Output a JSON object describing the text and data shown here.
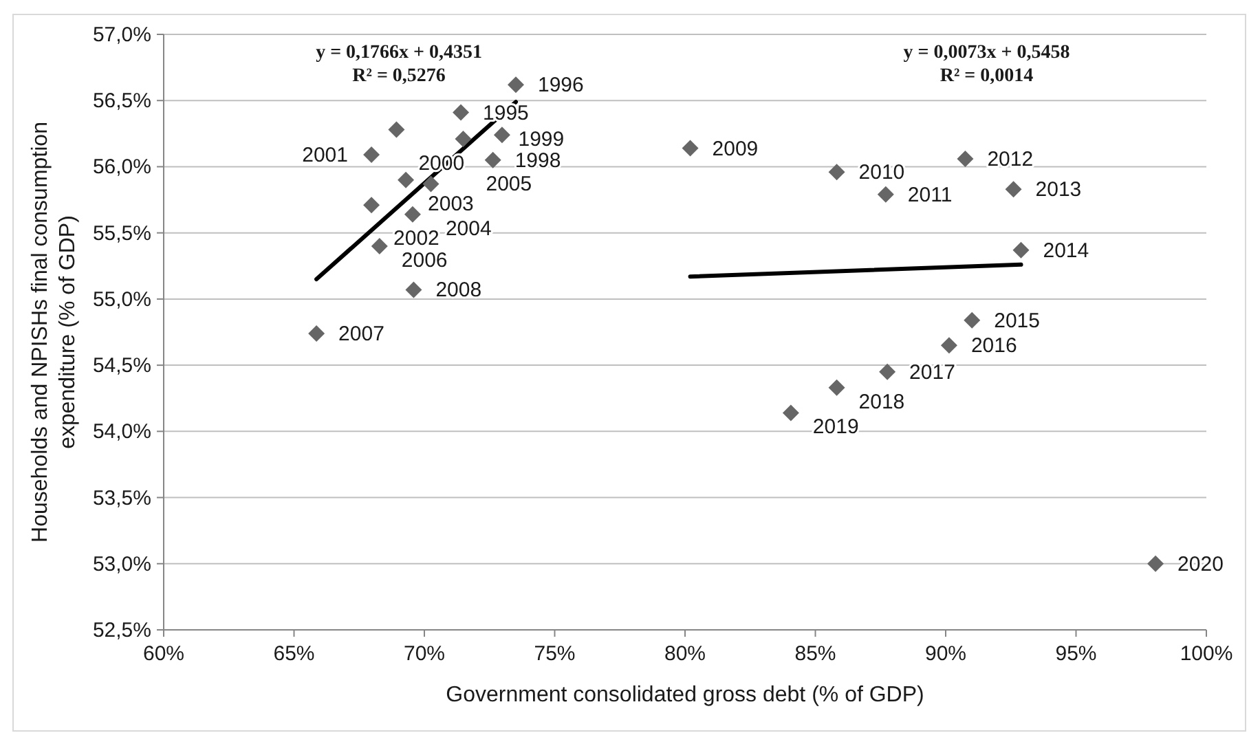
{
  "chart_data": {
    "type": "scatter",
    "xlabel": "Government consolidated gross debt (% of GDP)",
    "ylabel": "Households and NPISHs final consumption\nexpenditure (% of GDP)",
    "xlim": [
      60,
      100
    ],
    "ylim": [
      52.5,
      57
    ],
    "xticks": [
      {
        "value": 60,
        "label": "60%"
      },
      {
        "value": 65,
        "label": "65%"
      },
      {
        "value": 70,
        "label": "70%"
      },
      {
        "value": 75,
        "label": "75%"
      },
      {
        "value": 80,
        "label": "80%"
      },
      {
        "value": 85,
        "label": "85%"
      },
      {
        "value": 90,
        "label": "90%"
      },
      {
        "value": 95,
        "label": "95%"
      },
      {
        "value": 100,
        "label": "100%"
      }
    ],
    "yticks": [
      {
        "value": 52.5,
        "label": "52,5%"
      },
      {
        "value": 53,
        "label": "53,0%"
      },
      {
        "value": 53.5,
        "label": "53,5%"
      },
      {
        "value": 54,
        "label": "54,0%"
      },
      {
        "value": 54.5,
        "label": "54,5%"
      },
      {
        "value": 55,
        "label": "55,0%"
      },
      {
        "value": 55.5,
        "label": "55,5%"
      },
      {
        "value": 56,
        "label": "56,0%"
      },
      {
        "value": 56.5,
        "label": "56,5%"
      },
      {
        "value": 57,
        "label": "57,0%"
      }
    ],
    "grid": "y",
    "series": [
      {
        "type": "scatter",
        "color": "#666666",
        "marker": "diamond",
        "x": [
          71.4,
          73.51,
          72.98,
          72.63,
          71.49,
          68.93,
          67.97,
          67.97,
          69.29,
          69.55,
          70.25,
          68.28,
          65.86,
          69.59,
          80.2,
          85.82,
          87.7,
          90.75,
          92.6,
          92.89,
          91.01,
          90.13,
          87.76,
          85.82,
          84.06,
          98.05
        ],
        "values": [
          56.41,
          56.62,
          56.24,
          56.05,
          56.21,
          56.28,
          56.09,
          55.71,
          55.9,
          55.64,
          55.87,
          55.4,
          54.74,
          55.07,
          56.14,
          55.96,
          55.79,
          56.06,
          55.83,
          55.37,
          54.84,
          54.65,
          54.45,
          54.33,
          54.14,
          53.0
        ]
      },
      {
        "type": "line",
        "color": "#000000",
        "x": [
          65.86,
          73.51
        ],
        "values": [
          55.15,
          56.49
        ]
      },
      {
        "type": "line",
        "color": "#000000",
        "x": [
          80.2,
          92.89
        ],
        "values": [
          55.17,
          55.26
        ]
      }
    ],
    "annotations": [
      "y = 0,1766x + 0,4351",
      "R² = 0,5276",
      "y = 0,0073x + 0,5458",
      "R² = 0,0014",
      {
        "text": "1995",
        "x": 71.4,
        "y": 56.41
      },
      {
        "text": "1996",
        "x": 73.51,
        "y": 56.62
      },
      {
        "text": "1998",
        "x": 72.63,
        "y": 56.05
      },
      {
        "text": "1999",
        "x": 71.49,
        "y": 56.21
      },
      {
        "text": "2000",
        "x": 68.93,
        "y": 56.28
      },
      {
        "text": "2001",
        "x": 67.97,
        "y": 56.09
      },
      {
        "text": "2002",
        "x": 67.97,
        "y": 55.71
      },
      {
        "text": "2003",
        "x": 69.29,
        "y": 55.9
      },
      {
        "text": "2004",
        "x": 69.55,
        "y": 55.64
      },
      {
        "text": "2005",
        "x": 70.25,
        "y": 55.87
      },
      {
        "text": "2006",
        "x": 68.28,
        "y": 55.4
      },
      {
        "text": "2007",
        "x": 65.86,
        "y": 54.74
      },
      {
        "text": "2008",
        "x": 69.59,
        "y": 55.07
      },
      {
        "text": "2009",
        "x": 80.2,
        "y": 56.14
      },
      {
        "text": "2010",
        "x": 85.82,
        "y": 55.96
      },
      {
        "text": "2011",
        "x": 87.7,
        "y": 55.79
      },
      {
        "text": "2012",
        "x": 90.75,
        "y": 56.06
      },
      {
        "text": "2013",
        "x": 92.6,
        "y": 55.83
      },
      {
        "text": "2014",
        "x": 92.89,
        "y": 55.37
      },
      {
        "text": "2015",
        "x": 91.01,
        "y": 54.84
      },
      {
        "text": "2016",
        "x": 90.13,
        "y": 54.65
      },
      {
        "text": "2017",
        "x": 87.76,
        "y": 54.45
      },
      {
        "text": "2018",
        "x": 85.82,
        "y": 54.33
      },
      {
        "text": "2019",
        "x": 84.06,
        "y": 54.14
      },
      {
        "text": "2020",
        "x": 98.05,
        "y": 53.0
      }
    ]
  }
}
